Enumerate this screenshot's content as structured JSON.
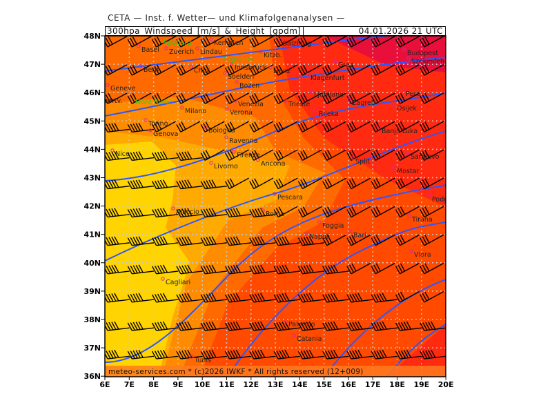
{
  "header": {
    "institute": "CETA — Inst. f. Wetter— und Klimafolgenanalysen —",
    "product": "300hpa_Windspeed_[m/s]_&_Height_[gpdm]",
    "valid_time": "04.01.2026 21 UTC"
  },
  "footer": "meteo-services.com * (c)2026 IWKF * All rights reserved (12+009)",
  "axes": {
    "lat_labels": [
      "48N",
      "47N",
      "46N",
      "45N",
      "44N",
      "43N",
      "42N",
      "41N",
      "40N",
      "39N",
      "38N",
      "37N",
      "36N"
    ],
    "lon_labels": [
      "6E",
      "7E",
      "8E",
      "9E",
      "10E",
      "11E",
      "12E",
      "13E",
      "14E",
      "15E",
      "16E",
      "17E",
      "18E",
      "19E",
      "20E"
    ]
  },
  "cities": [
    "Basel",
    "Zuerich",
    "Lindau",
    "Kempten",
    "Salzburg",
    "Kitzb.",
    "Innsbruck",
    "Bern",
    "Chur",
    "Soelden",
    "Lienz",
    "Bozen",
    "Graz",
    "Klagenfurt",
    "Ljubljana",
    "Budapest",
    "Szekesfeh",
    "Zagreb",
    "Pecs",
    "Osijek",
    "Rijeka",
    "Trieste",
    "Geneve",
    "Albertv.",
    "Milano",
    "Verona",
    "Venezia",
    "Torino",
    "Genova",
    "Bologna",
    "Ravenna",
    "Banja Luka",
    "Nice",
    "Firenze",
    "Ancona",
    "Split",
    "Sarajevo",
    "Mostar",
    "Livorno",
    "Pescara",
    "Podgorica",
    "Roma",
    "Tirana",
    "Foggia",
    "Bari",
    "Napoli",
    "Vlora",
    "Ajaccio",
    "Cagliari",
    "Palermo",
    "Catania",
    "Tunis"
  ],
  "peaks": [
    "Feldberg",
    "Zugspitze",
    "Mont Blanc"
  ],
  "colors": {
    "contour": "#2f55ff",
    "bands": [
      "#e8103a",
      "#ff2a10",
      "#ff4a00",
      "#ff6a00",
      "#ff8c00",
      "#ffaa00",
      "#ffd400"
    ]
  }
}
